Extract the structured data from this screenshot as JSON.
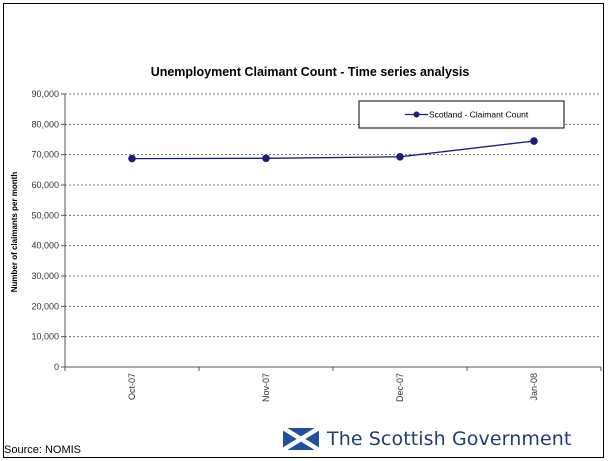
{
  "chart_data": {
    "type": "line",
    "title": "Unemployment Claimant Count - Time series analysis",
    "ylabel": "Number of claimants per month",
    "xlabel": "",
    "categories": [
      "Oct-07",
      "Nov-07",
      "Dec-07",
      "Jan-08"
    ],
    "series": [
      {
        "name": "Scotland - Claimant Count",
        "values": [
          68700,
          68800,
          69300,
          74500
        ]
      }
    ],
    "ylim": [
      0,
      90000
    ],
    "yticks": [
      "0",
      "10,000",
      "20,000",
      "30,000",
      "40,000",
      "50,000",
      "60,000",
      "70,000",
      "80,000",
      "90,000"
    ],
    "grid": "horizontal dashed",
    "legend_position": "top-right",
    "series_color": "#1a1f7a"
  },
  "footer": {
    "source": "Source: NOMIS",
    "logo_text": "The Scottish Government",
    "logo_color": "#1f3e73"
  }
}
